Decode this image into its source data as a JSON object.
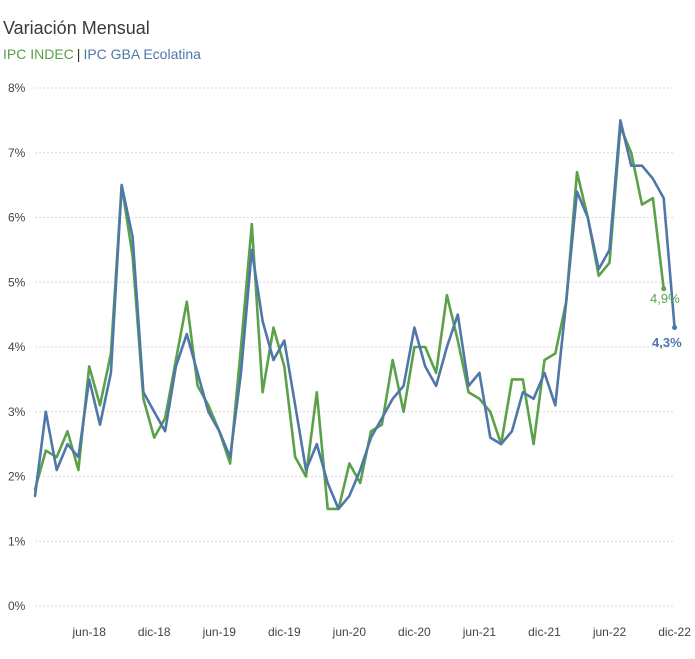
{
  "chart_data": {
    "type": "line",
    "title": "Variación Mensual",
    "series": [
      {
        "name": "IPC INDEC",
        "color": "#5aa14a",
        "values": [
          1.8,
          2.4,
          2.3,
          2.7,
          2.1,
          3.7,
          3.1,
          3.9,
          6.5,
          5.4,
          3.2,
          2.6,
          2.9,
          3.8,
          4.7,
          3.4,
          3.1,
          2.7,
          2.2,
          4.0,
          5.9,
          3.3,
          4.3,
          3.7,
          2.3,
          2.0,
          3.3,
          1.5,
          1.5,
          2.2,
          1.9,
          2.7,
          2.8,
          3.8,
          3.0,
          4.0,
          4.0,
          3.6,
          4.8,
          4.1,
          3.3,
          3.2,
          3.0,
          2.5,
          3.5,
          3.5,
          2.5,
          3.8,
          3.9,
          4.7,
          6.7,
          6.0,
          5.1,
          5.3,
          7.4,
          7.0,
          6.2,
          6.3,
          4.9
        ],
        "end_label": "4,9%"
      },
      {
        "name": "IPC GBA Ecolatina",
        "color": "#4f77a8",
        "values": [
          1.7,
          3.0,
          2.1,
          2.5,
          2.3,
          3.5,
          2.8,
          3.6,
          6.5,
          5.7,
          3.3,
          3.0,
          2.7,
          3.7,
          4.2,
          3.6,
          3.0,
          2.7,
          2.3,
          3.6,
          5.5,
          4.4,
          3.8,
          4.1,
          3.1,
          2.1,
          2.5,
          1.9,
          1.5,
          1.7,
          2.1,
          2.6,
          2.9,
          3.2,
          3.4,
          4.3,
          3.7,
          3.4,
          4.0,
          4.5,
          3.4,
          3.6,
          2.6,
          2.5,
          2.7,
          3.3,
          3.2,
          3.6,
          3.1,
          4.7,
          6.4,
          6.0,
          5.2,
          5.5,
          7.5,
          6.8,
          6.8,
          6.6,
          6.3,
          4.3
        ],
        "end_label": "4,3%"
      }
    ],
    "x_ticks": [
      {
        "label": "jun-18",
        "index": 5
      },
      {
        "label": "dic-18",
        "index": 11
      },
      {
        "label": "jun-19",
        "index": 17
      },
      {
        "label": "dic-19",
        "index": 23
      },
      {
        "label": "jun-20",
        "index": 29
      },
      {
        "label": "dic-20",
        "index": 35
      },
      {
        "label": "jun-21",
        "index": 41
      },
      {
        "label": "dic-21",
        "index": 47
      },
      {
        "label": "jun-22",
        "index": 53
      },
      {
        "label": "dic-22",
        "index": 59
      }
    ],
    "y_ticks": [
      "0%",
      "1%",
      "2%",
      "3%",
      "4%",
      "5%",
      "6%",
      "7%",
      "8%"
    ],
    "ylim": [
      0,
      8
    ],
    "grid": true
  }
}
